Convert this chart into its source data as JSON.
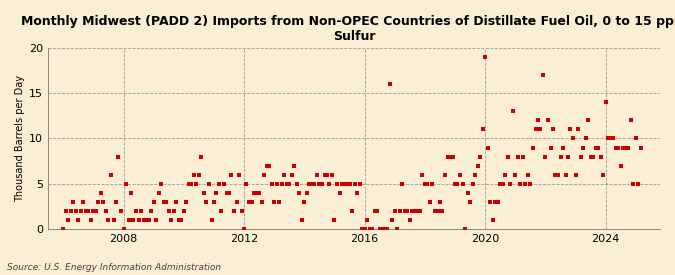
{
  "title": "Monthly Midwest (PADD 2) Imports from Non-OPEC Countries of Distillate Fuel Oil, 0 to 15 ppm\nSulfur",
  "ylabel": "Thousand Barrels per Day",
  "source": "Source: U.S. Energy Information Administration",
  "background_color": "#faefd4",
  "marker_color": "#cc0000",
  "ylim": [
    0,
    20
  ],
  "yticks": [
    0,
    5,
    10,
    15,
    20
  ],
  "xlim_start": 2005.5,
  "xlim_end": 2025.8,
  "xticks": [
    2008,
    2012,
    2016,
    2020,
    2024
  ],
  "dates": [
    2006.0,
    2006.08,
    2006.17,
    2006.25,
    2006.33,
    2006.42,
    2006.5,
    2006.58,
    2006.67,
    2006.75,
    2006.83,
    2006.92,
    2007.0,
    2007.08,
    2007.17,
    2007.25,
    2007.33,
    2007.42,
    2007.5,
    2007.58,
    2007.67,
    2007.75,
    2007.83,
    2007.92,
    2008.0,
    2008.08,
    2008.17,
    2008.25,
    2008.33,
    2008.42,
    2008.5,
    2008.58,
    2008.67,
    2008.75,
    2008.83,
    2008.92,
    2009.0,
    2009.08,
    2009.17,
    2009.25,
    2009.33,
    2009.42,
    2009.5,
    2009.58,
    2009.67,
    2009.75,
    2009.83,
    2009.92,
    2010.0,
    2010.08,
    2010.17,
    2010.25,
    2010.33,
    2010.42,
    2010.5,
    2010.58,
    2010.67,
    2010.75,
    2010.83,
    2010.92,
    2011.0,
    2011.08,
    2011.17,
    2011.25,
    2011.33,
    2011.42,
    2011.5,
    2011.58,
    2011.67,
    2011.75,
    2011.83,
    2011.92,
    2012.0,
    2012.08,
    2012.17,
    2012.25,
    2012.33,
    2012.42,
    2012.5,
    2012.58,
    2012.67,
    2012.75,
    2012.83,
    2012.92,
    2013.0,
    2013.08,
    2013.17,
    2013.25,
    2013.33,
    2013.42,
    2013.5,
    2013.58,
    2013.67,
    2013.75,
    2013.83,
    2013.92,
    2014.0,
    2014.08,
    2014.17,
    2014.25,
    2014.33,
    2014.42,
    2014.5,
    2014.58,
    2014.67,
    2014.75,
    2014.83,
    2014.92,
    2015.0,
    2015.08,
    2015.17,
    2015.25,
    2015.33,
    2015.42,
    2015.5,
    2015.58,
    2015.67,
    2015.75,
    2015.83,
    2015.92,
    2016.0,
    2016.08,
    2016.17,
    2016.25,
    2016.33,
    2016.42,
    2016.5,
    2016.58,
    2016.67,
    2016.75,
    2016.83,
    2016.92,
    2017.0,
    2017.08,
    2017.17,
    2017.25,
    2017.33,
    2017.42,
    2017.5,
    2017.58,
    2017.67,
    2017.75,
    2017.83,
    2017.92,
    2018.0,
    2018.08,
    2018.17,
    2018.25,
    2018.33,
    2018.42,
    2018.5,
    2018.58,
    2018.67,
    2018.75,
    2018.83,
    2018.92,
    2019.0,
    2019.08,
    2019.17,
    2019.25,
    2019.33,
    2019.42,
    2019.5,
    2019.58,
    2019.67,
    2019.75,
    2019.83,
    2019.92,
    2020.0,
    2020.08,
    2020.17,
    2020.25,
    2020.33,
    2020.42,
    2020.5,
    2020.58,
    2020.67,
    2020.75,
    2020.83,
    2020.92,
    2021.0,
    2021.08,
    2021.17,
    2021.25,
    2021.33,
    2021.42,
    2021.5,
    2021.58,
    2021.67,
    2021.75,
    2021.83,
    2021.92,
    2022.0,
    2022.08,
    2022.17,
    2022.25,
    2022.33,
    2022.42,
    2022.5,
    2022.58,
    2022.67,
    2022.75,
    2022.83,
    2022.92,
    2023.0,
    2023.08,
    2023.17,
    2023.25,
    2023.33,
    2023.42,
    2023.5,
    2023.58,
    2023.67,
    2023.75,
    2023.83,
    2023.92,
    2024.0,
    2024.08,
    2024.17,
    2024.25,
    2024.33,
    2024.42,
    2024.5,
    2024.58,
    2024.67,
    2024.75,
    2024.83,
    2024.92,
    2025.0,
    2025.08,
    2025.17
  ],
  "values": [
    0,
    2,
    1,
    2,
    3,
    2,
    1,
    2,
    3,
    2,
    2,
    1,
    2,
    2,
    3,
    4,
    3,
    2,
    1,
    6,
    1,
    3,
    8,
    2,
    0,
    5,
    1,
    4,
    1,
    2,
    1,
    2,
    1,
    1,
    1,
    2,
    3,
    1,
    4,
    5,
    3,
    3,
    2,
    1,
    2,
    3,
    1,
    1,
    2,
    3,
    5,
    5,
    6,
    5,
    6,
    8,
    4,
    3,
    5,
    1,
    3,
    4,
    5,
    2,
    5,
    4,
    4,
    6,
    2,
    3,
    6,
    2,
    0,
    5,
    3,
    3,
    4,
    4,
    4,
    3,
    6,
    7,
    7,
    5,
    3,
    5,
    3,
    5,
    6,
    5,
    5,
    6,
    7,
    5,
    4,
    1,
    3,
    4,
    5,
    5,
    5,
    6,
    5,
    5,
    6,
    6,
    5,
    6,
    1,
    5,
    4,
    5,
    5,
    5,
    5,
    2,
    5,
    4,
    5,
    0,
    0,
    1,
    0,
    0,
    2,
    2,
    0,
    0,
    0,
    0,
    16,
    1,
    2,
    0,
    2,
    5,
    2,
    2,
    1,
    2,
    2,
    2,
    2,
    6,
    5,
    5,
    3,
    5,
    2,
    2,
    3,
    2,
    6,
    8,
    8,
    8,
    5,
    5,
    6,
    5,
    0,
    4,
    3,
    5,
    6,
    7,
    8,
    11,
    19,
    9,
    3,
    1,
    3,
    3,
    5,
    5,
    6,
    8,
    5,
    13,
    6,
    8,
    5,
    8,
    5,
    6,
    5,
    9,
    11,
    12,
    11,
    17,
    8,
    12,
    9,
    11,
    6,
    6,
    8,
    9,
    6,
    8,
    11,
    10,
    6,
    11,
    8,
    9,
    10,
    12,
    8,
    8,
    9,
    9,
    8,
    6,
    14,
    10,
    10,
    10,
    9,
    9,
    7,
    9,
    9,
    9,
    12,
    5,
    10,
    5,
    9
  ]
}
